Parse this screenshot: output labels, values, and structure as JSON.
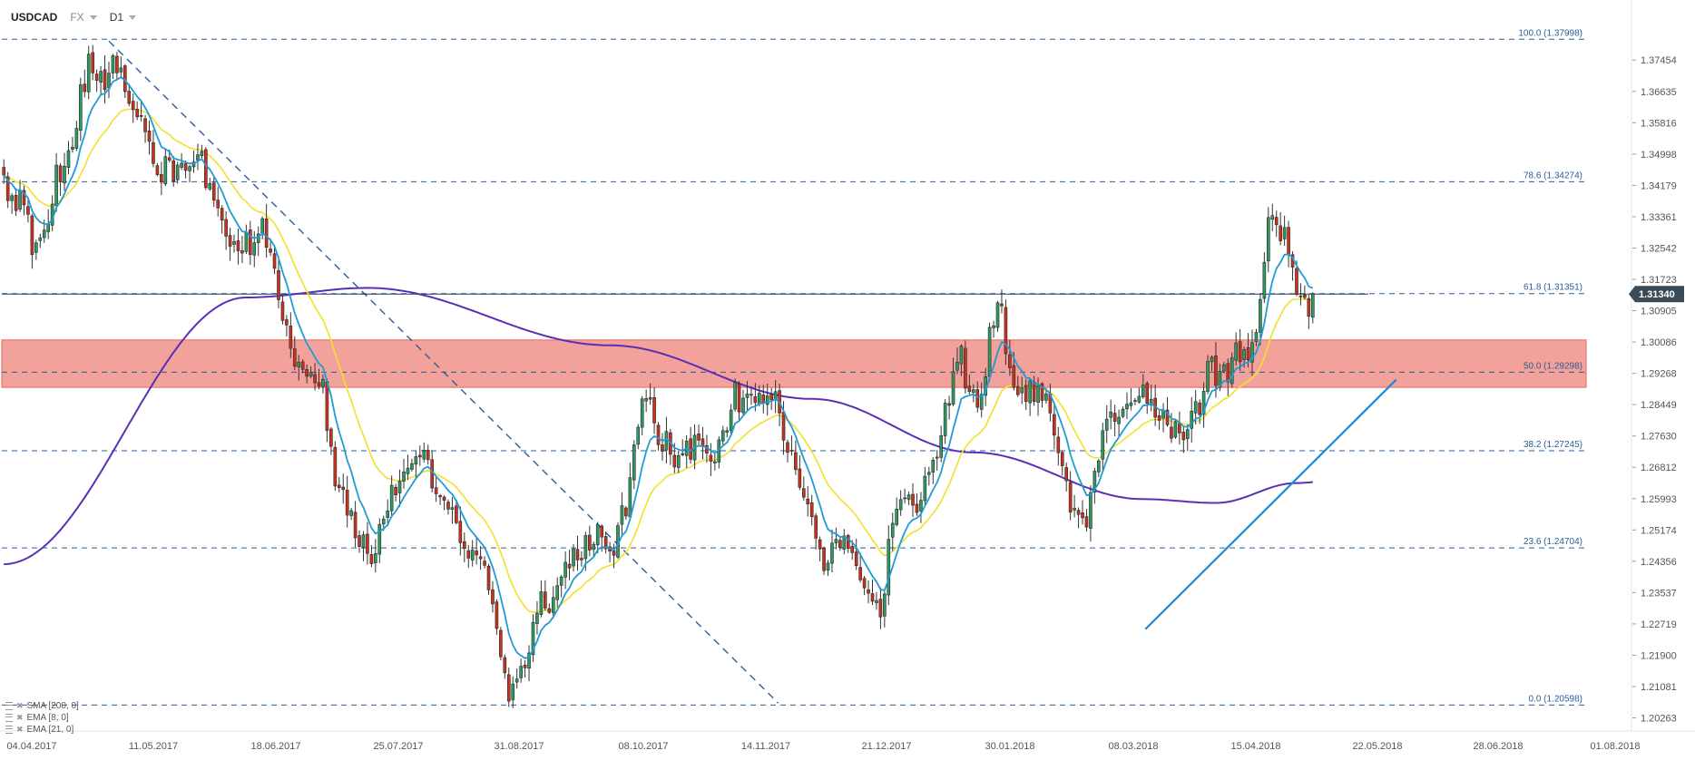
{
  "header": {
    "symbol": "USDCAD",
    "market": "FX",
    "timeframe": "D1"
  },
  "indicators": [
    {
      "label": "SMA [200, 0]",
      "color": "#5b2fb5"
    },
    {
      "label": "EMA [8, 0]",
      "color": "#1f9bd6"
    },
    {
      "label": "EMA [21, 0]",
      "color": "#f3e02b"
    }
  ],
  "chart_data": {
    "type": "candlestick",
    "symbol": "USDCAD",
    "timeframe": "D1",
    "x_ticks": [
      "04.04.2017",
      "11.05.2017",
      "18.06.2017",
      "25.07.2017",
      "31.08.2017",
      "08.10.2017",
      "14.11.2017",
      "21.12.2017",
      "30.01.2018",
      "08.03.2018",
      "15.04.2018",
      "22.05.2018",
      "28.06.2018",
      "01.08.2018"
    ],
    "y_ticks": [
      "1.37454",
      "1.36635",
      "1.35816",
      "1.34998",
      "1.34179",
      "1.33361",
      "1.32542",
      "1.31723",
      "1.30905",
      "1.30086",
      "1.29268",
      "1.28449",
      "1.27630",
      "1.26812",
      "1.25993",
      "1.25174",
      "1.24356",
      "1.23537",
      "1.22719",
      "1.21900",
      "1.21081",
      "1.20263"
    ],
    "ylim": [
      1.1992,
      1.3855
    ],
    "current_price": {
      "label": "1.31340",
      "value": 1.3134
    },
    "fibonacci": [
      {
        "label": "100.0 (1.37998)",
        "value": 1.37998
      },
      {
        "label": "78.6 (1.34274)",
        "value": 1.34274
      },
      {
        "label": "61.8 (1.31351)",
        "value": 1.31351
      },
      {
        "label": "50.0 (1.29298)",
        "value": 1.29298
      },
      {
        "label": "38.2 (1.27245)",
        "value": 1.27245
      },
      {
        "label": "23.6 (1.24704)",
        "value": 1.24704
      },
      {
        "label": "0.0 (1.20598)",
        "value": 1.20598
      }
    ],
    "resistance_zone": {
      "from": 1.289,
      "to": 1.3014,
      "color": "#f08a82"
    },
    "trendline": [
      [
        0.0,
        1.2258
      ],
      [
        0.78,
        1.2915
      ]
    ],
    "fib_swing_line": [
      [
        0.0,
        1.3795
      ],
      [
        0.572,
        1.2065
      ]
    ],
    "closes": [
      1.3445,
      1.3378,
      1.3391,
      1.3352,
      1.3405,
      1.3367,
      1.3342,
      1.3237,
      1.3268,
      1.3281,
      1.3301,
      1.3317,
      1.3369,
      1.3471,
      1.3427,
      1.3468,
      1.3509,
      1.3518,
      1.3567,
      1.3681,
      1.3663,
      1.3761,
      1.3712,
      1.3692,
      1.3716,
      1.3668,
      1.3711,
      1.3757,
      1.3712,
      1.3725,
      1.3663,
      1.3632,
      1.3616,
      1.3597,
      1.3598,
      1.3558,
      1.3533,
      1.3475,
      1.3446,
      1.3426,
      1.3493,
      1.3484,
      1.3429,
      1.3471,
      1.3476,
      1.3457,
      1.3467,
      1.3479,
      1.3498,
      1.3507,
      1.3412,
      1.3423,
      1.3379,
      1.3359,
      1.3327,
      1.3285,
      1.3259,
      1.3271,
      1.3247,
      1.3241,
      1.3296,
      1.3237,
      1.3268,
      1.3291,
      1.3331,
      1.3256,
      1.3243,
      1.3201,
      1.3119,
      1.3065,
      1.3053,
      1.2992,
      1.2945,
      1.2956,
      1.2937,
      1.2919,
      1.2929,
      1.2902,
      1.2893,
      1.2911,
      1.2777,
      1.2736,
      1.2632,
      1.2628,
      1.2623,
      1.2556,
      1.2568,
      1.2497,
      1.2474,
      1.2505,
      1.2456,
      1.2429,
      1.2456,
      1.2532,
      1.2546,
      1.2567,
      1.2634,
      1.2609,
      1.2645,
      1.2669,
      1.2679,
      1.2691,
      1.2709,
      1.2708,
      1.2726,
      1.2701,
      1.2627,
      1.2612,
      1.2604,
      1.2595,
      1.2572,
      1.2576,
      1.2536,
      1.2484,
      1.2469,
      1.2444,
      1.2465,
      1.2452,
      1.2442,
      1.2425,
      1.2361,
      1.2324,
      1.226,
      1.2186,
      1.2144,
      1.207,
      1.2115,
      1.2128,
      1.2161,
      1.2157,
      1.2196,
      1.2276,
      1.23,
      1.2356,
      1.2313,
      1.2302,
      1.2341,
      1.2372,
      1.2395,
      1.2433,
      1.2418,
      1.2468,
      1.2439,
      1.2439,
      1.2503,
      1.2465,
      1.248,
      1.2531,
      1.2499,
      1.2468,
      1.2462,
      1.2451,
      1.2529,
      1.2581,
      1.2554,
      1.2654,
      1.274,
      1.2786,
      1.286,
      1.2861,
      1.2859,
      1.2797,
      1.274,
      1.2723,
      1.2775,
      1.2715,
      1.2682,
      1.2712,
      1.2714,
      1.275,
      1.2702,
      1.2765,
      1.2752,
      1.2735,
      1.2718,
      1.2697,
      1.2696,
      1.2753,
      1.2777,
      1.2777,
      1.2831,
      1.2903,
      1.2826,
      1.2862,
      1.2873,
      1.287,
      1.285,
      1.2875,
      1.2849,
      1.2868,
      1.2858,
      1.2879,
      1.2823,
      1.2752,
      1.272,
      1.2725,
      1.2675,
      1.2629,
      1.2603,
      1.2585,
      1.2552,
      1.2496,
      1.2468,
      1.2411,
      1.2431,
      1.2483,
      1.2493,
      1.2471,
      1.2502,
      1.2469,
      1.2458,
      1.2424,
      1.2387,
      1.2366,
      1.2352,
      1.2331,
      1.2333,
      1.229,
      1.235,
      1.2493,
      1.2535,
      1.2572,
      1.2597,
      1.2601,
      1.2609,
      1.2582,
      1.2563,
      1.2595,
      1.2658,
      1.2668,
      1.27,
      1.2708,
      1.2764,
      1.2849,
      1.2843,
      1.2931,
      1.2956,
      1.2998,
      1.2888,
      1.2879,
      1.2884,
      1.2838,
      1.2872,
      1.2918,
      1.3047,
      1.3051,
      1.3111,
      1.3103,
      1.2978,
      1.2941,
      1.289,
      1.2871,
      1.289,
      1.2853,
      1.2907,
      1.2853,
      1.2894,
      1.2856,
      1.2873,
      1.2823,
      1.2765,
      1.2719,
      1.2685,
      1.2646,
      1.2564,
      1.2574,
      1.2558,
      1.2549,
      1.2525,
      1.2615,
      1.2671,
      1.2698,
      1.2777,
      1.2807,
      1.2826,
      1.2801,
      1.2812,
      1.2833,
      1.2846,
      1.285,
      1.2856,
      1.2867,
      1.2896,
      1.2848,
      1.2859,
      1.2812,
      1.2804,
      1.283,
      1.2792,
      1.2757,
      1.28,
      1.2771,
      1.2753,
      1.278,
      1.2828,
      1.2853,
      1.2819,
      1.288,
      1.2958,
      1.2969,
      1.2895,
      1.2932,
      1.2949,
      1.2904,
      1.2967,
      1.3006,
      1.2957,
      1.2989,
      1.2962,
      1.3007,
      1.3034,
      1.312,
      1.3217,
      1.3334,
      1.3339,
      1.3315,
      1.3273,
      1.3308,
      1.3237,
      1.3204,
      1.3133,
      1.3129,
      1.3125,
      1.3076,
      1.3134
    ]
  }
}
